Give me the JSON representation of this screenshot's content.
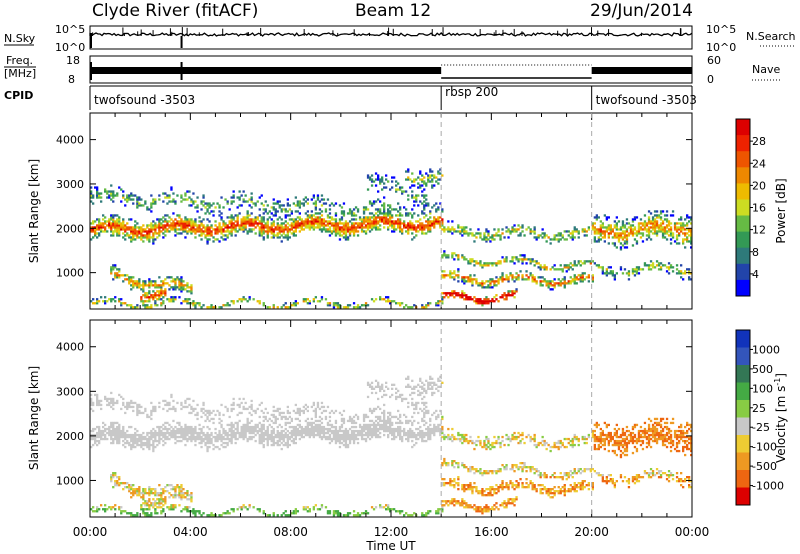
{
  "header": {
    "station": "Clyde River (fitACF)",
    "beam": "Beam 12",
    "date": "29/Jun/2014"
  },
  "strips": {
    "nsky_label": "N.Sky",
    "nsky_ticks": [
      "10^5",
      "10^0"
    ],
    "nsearch_label": "N.Search",
    "freq_label_top": "Freq.",
    "freq_label_unit": "[MHz]",
    "freq_ticks": [
      "18",
      "8"
    ],
    "nave_ticks": [
      "60",
      "0"
    ],
    "nave_label": "Nave",
    "cpid_label": "CPID",
    "cpid_segments": [
      {
        "name": "twofsound -3503",
        "start_hour": 0,
        "end_hour": 14
      },
      {
        "name": "rbsp 200",
        "start_hour": 14,
        "end_hour": 20
      },
      {
        "name": "twofsound -3503",
        "start_hour": 20,
        "end_hour": 24
      }
    ]
  },
  "chart_data": [
    {
      "type": "heatmap",
      "quantity": "power",
      "ylabel": "Slant Range [km]",
      "xlabel": "Time UT",
      "x_ticks": [
        "00:00",
        "04:00",
        "08:00",
        "12:00",
        "16:00",
        "20:00",
        "00:00"
      ],
      "y_ticks": [
        "1000",
        "2000",
        "3000",
        "4000"
      ],
      "ylim": [
        180,
        4600
      ],
      "colorbar": {
        "label": "Power [dB]",
        "ticks": [
          "28",
          "24",
          "20",
          "16",
          "12",
          "8",
          "4"
        ],
        "range": [
          0,
          30
        ],
        "colors": [
          "#0000ff",
          "#2244aa",
          "#2e7a7a",
          "#339955",
          "#66bb44",
          "#ccdd22",
          "#eebb00",
          "#ee8800",
          "#ee5500",
          "#ee2200",
          "#dd0000"
        ]
      }
    },
    {
      "type": "heatmap",
      "quantity": "velocity",
      "ylabel": "Slant Range [km]",
      "xlabel": "Time UT",
      "x_ticks": [
        "00:00",
        "04:00",
        "08:00",
        "12:00",
        "16:00",
        "20:00",
        "00:00"
      ],
      "y_ticks": [
        "1000",
        "2000",
        "3000",
        "4000"
      ],
      "ylim": [
        180,
        4600
      ],
      "colorbar": {
        "label_main": "Velocity [m s",
        "label_sup": "-1",
        "label_end": "]",
        "ticks": [
          "1000",
          "500",
          "100",
          "25",
          "-25",
          "-100",
          "-500",
          "-1000"
        ],
        "colors": [
          "#1133bb",
          "#3355bb",
          "#337755",
          "#44aa44",
          "#88cc44",
          "#c8c8c8",
          "#eecc33",
          "#ee9922",
          "#ee6611",
          "#dd0000"
        ]
      }
    }
  ],
  "x_axis_title": "Time UT"
}
